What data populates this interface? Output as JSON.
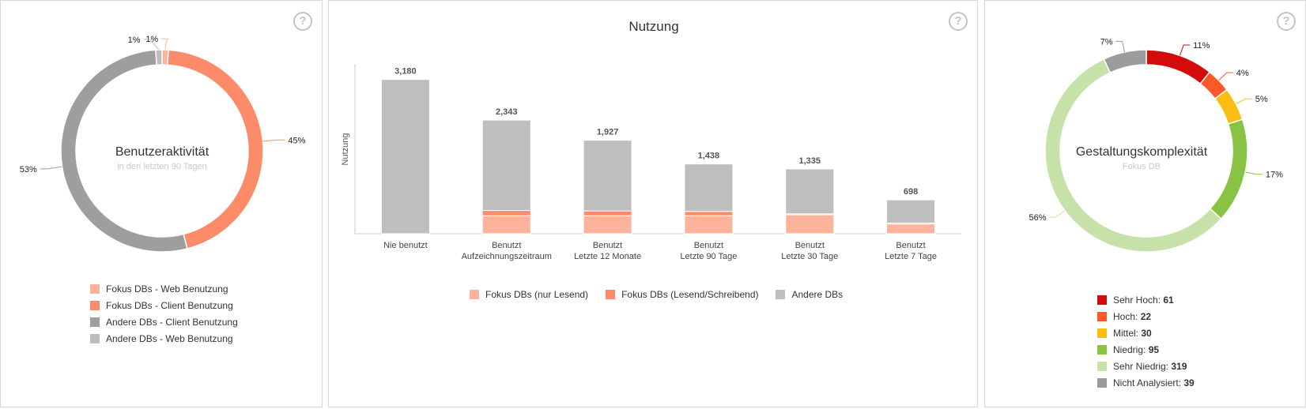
{
  "chart_data": [
    {
      "type": "pie",
      "title": "Benutzeraktivität",
      "subtitle": "in den letzten 90 Tagen",
      "categories": [
        "Fokus DBs - Web Benutzung",
        "Fokus DBs - Client Benutzung",
        "Andere DBs - Client Benutzung",
        "Andere DBs - Web Benutzung"
      ],
      "values": [
        1,
        45,
        53,
        1
      ],
      "labels": [
        "1%",
        "45%",
        "53%",
        "1%"
      ],
      "colors": [
        "#fbb49b",
        "#fc8c69",
        "#9e9e9e",
        "#bcbcbc"
      ],
      "legend": "bottom"
    },
    {
      "type": "bar",
      "title": "Nutzung",
      "ylabel": "Nutzung",
      "xlabel": "",
      "categories": [
        "Nie benutzt",
        "Benutzt\nAufzeichnungszeitraum",
        "Benutzt\nLetzte 12 Monate",
        "Benutzt\nLetzte 90 Tage",
        "Benutzt\nLetzte 30 Tage",
        "Benutzt\nLetzte 7 Tage"
      ],
      "series": [
        {
          "name": "Fokus DBs (nur Lesend)",
          "values": [
            0,
            370,
            370,
            370,
            390,
            200
          ],
          "color": "#fbb49b"
        },
        {
          "name": "Fokus DBs (Lesend/Schreibend)",
          "values": [
            0,
            110,
            100,
            90,
            20,
            20
          ],
          "color": "#fc8c69"
        },
        {
          "name": "Andere DBs",
          "values": [
            3180,
            1863,
            1457,
            978,
            925,
            478
          ],
          "color": "#bebebe"
        }
      ],
      "totals": [
        "3,180",
        "2,343",
        "1,927",
        "1,438",
        "1,335",
        "698"
      ],
      "ylim": [
        0,
        3500
      ],
      "stacked": true,
      "legend": "bottom"
    },
    {
      "type": "pie",
      "title": "Gestaltungskomplexität",
      "subtitle": "Fokus DB",
      "categories": [
        "Sehr Hoch",
        "Hoch",
        "Mittel",
        "Niedrig",
        "Sehr Niedrig",
        "Nicht Analysiert"
      ],
      "values": [
        61,
        22,
        30,
        95,
        319,
        39
      ],
      "labels": [
        "11%",
        "4%",
        "5%",
        "17%",
        "56%",
        "7%"
      ],
      "colors": [
        "#d40b0b",
        "#fb5a28",
        "#fcbd13",
        "#88c343",
        "#c6e2a8",
        "#9c9c9c"
      ],
      "legend": "bottom"
    }
  ],
  "activity_legend": [
    {
      "label": "Fokus DBs - Web Benutzung",
      "color": "#fbb49b"
    },
    {
      "label": "Fokus DBs - Client Benutzung",
      "color": "#fc8c69"
    },
    {
      "label": "Andere DBs - Client Benutzung",
      "color": "#9e9e9e"
    },
    {
      "label": "Andere DBs - Web Benutzung",
      "color": "#bcbcbc"
    }
  ],
  "usage_legend": [
    {
      "label": "Fokus DBs (nur Lesend)",
      "color": "#fbb49b"
    },
    {
      "label": "Fokus DBs (Lesend/Schreibend)",
      "color": "#fc8c69"
    },
    {
      "label": "Andere DBs",
      "color": "#bebebe"
    }
  ],
  "complexity_legend": [
    {
      "label": "Sehr Hoch:",
      "value": "61",
      "color": "#d40b0b"
    },
    {
      "label": "Hoch:",
      "value": "22",
      "color": "#fb5a28"
    },
    {
      "label": "Mittel:",
      "value": "30",
      "color": "#fcbd13"
    },
    {
      "label": "Niedrig:",
      "value": "95",
      "color": "#88c343"
    },
    {
      "label": "Sehr Niedrig:",
      "value": "319",
      "color": "#c6e2a8"
    },
    {
      "label": "Nicht Analysiert:",
      "value": "39",
      "color": "#9c9c9c"
    }
  ],
  "help_icon_glyph": "?"
}
